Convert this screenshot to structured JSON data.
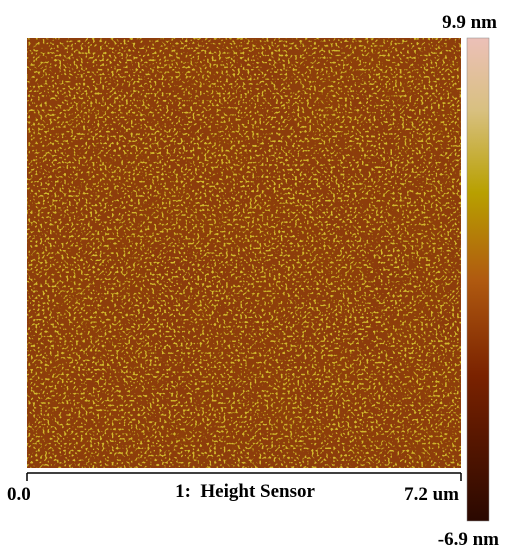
{
  "image": {
    "scale_max": "9.9 nm",
    "scale_min": "-6.9 nm",
    "axis_start": "0.0",
    "axis_end": "7.2 um",
    "caption": "1:  Height Sensor"
  }
}
